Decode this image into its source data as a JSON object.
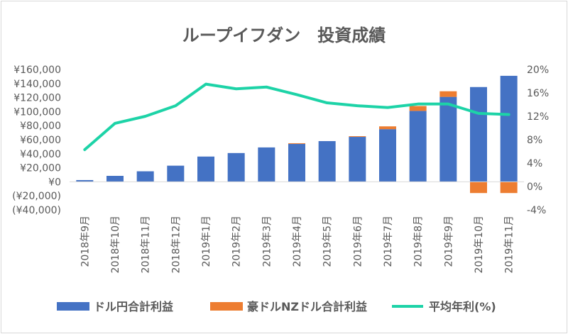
{
  "chart_data": {
    "type": "bar",
    "title": "ループイフダン　投資成績",
    "categories": [
      "2018年9月",
      "2018年10月",
      "2018年11月",
      "2018年12月",
      "2019年1月",
      "2019年2月",
      "2019年3月",
      "2019年4月",
      "2019年5月",
      "2019年6月",
      "2019年7月",
      "2019年8月",
      "2019年9月",
      "2019年10月",
      "2019年11月"
    ],
    "series": [
      {
        "name": "ドル円合計利益",
        "type": "bar",
        "axis": "left",
        "color": "#4472C4",
        "values": [
          2500,
          8500,
          15000,
          23000,
          36000,
          41000,
          49000,
          54000,
          58000,
          64000,
          75000,
          101000,
          121000,
          135000,
          151000
        ]
      },
      {
        "name": "豪ドルNZドル合計利益",
        "type": "bar",
        "axis": "left",
        "color": "#ED7D31",
        "values": [
          0,
          0,
          0,
          0,
          0,
          0,
          0,
          1000,
          0,
          1000,
          4000,
          7000,
          8000,
          -16000,
          -16000
        ]
      },
      {
        "name": "平均年利(%)",
        "type": "line",
        "axis": "right",
        "color": "#1DD3A7",
        "values": [
          6.3,
          10.8,
          12.0,
          13.8,
          17.5,
          16.7,
          17.0,
          15.7,
          14.3,
          13.8,
          13.5,
          14.1,
          14.1,
          12.5,
          12.3
        ]
      }
    ],
    "y_left": {
      "min": -40000,
      "max": 160000,
      "ticks": [
        160000,
        140000,
        120000,
        100000,
        80000,
        60000,
        40000,
        20000,
        0,
        -20000,
        -40000
      ],
      "tick_labels": [
        "¥160,000",
        "¥140,000",
        "¥120,000",
        "¥100,000",
        "¥80,000",
        "¥60,000",
        "¥40,000",
        "¥20,000",
        "¥0",
        "(¥20,000)",
        "(¥40,000)"
      ]
    },
    "y_right": {
      "min": -4,
      "max": 20,
      "ticks": [
        20,
        16,
        12,
        8,
        4,
        0,
        -4
      ],
      "tick_labels": [
        "20%",
        "16%",
        "12%",
        "8%",
        "4%",
        "0%",
        "-4%"
      ]
    },
    "grid": false,
    "legend_position": "bottom"
  }
}
